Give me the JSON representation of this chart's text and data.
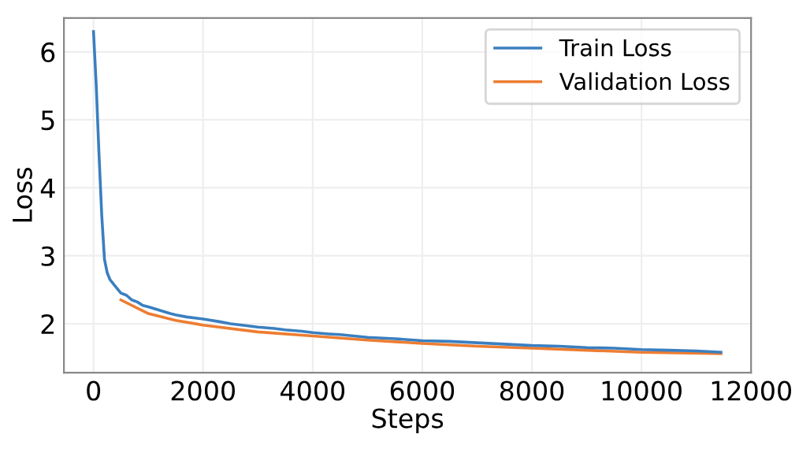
{
  "chart_data": {
    "type": "line",
    "xlabel": "Steps",
    "ylabel": "Loss",
    "xlim": [
      -540,
      12000
    ],
    "ylim": [
      1.28,
      6.5
    ],
    "xticks": [
      0,
      2000,
      4000,
      6000,
      8000,
      10000,
      12000
    ],
    "yticks": [
      2,
      3,
      4,
      5,
      6
    ],
    "grid": true,
    "legend": "top right",
    "series": [
      {
        "name": "Train Loss",
        "color": "#3a7fc0",
        "x": [
          0,
          50,
          100,
          150,
          200,
          250,
          300,
          400,
          500,
          600,
          700,
          800,
          900,
          1000,
          1200,
          1400,
          1500,
          1700,
          2000,
          2300,
          2500,
          2800,
          3000,
          3300,
          3500,
          3800,
          4000,
          4300,
          4500,
          5000,
          5500,
          6000,
          6500,
          7000,
          7500,
          8000,
          8500,
          9000,
          9500,
          10000,
          10500,
          11000,
          11450
        ],
        "values": [
          6.3,
          5.5,
          4.5,
          3.6,
          2.95,
          2.75,
          2.65,
          2.55,
          2.45,
          2.42,
          2.35,
          2.32,
          2.27,
          2.25,
          2.2,
          2.15,
          2.13,
          2.1,
          2.07,
          2.03,
          2.0,
          1.97,
          1.95,
          1.93,
          1.91,
          1.89,
          1.87,
          1.85,
          1.84,
          1.8,
          1.78,
          1.75,
          1.74,
          1.72,
          1.7,
          1.68,
          1.67,
          1.65,
          1.64,
          1.62,
          1.61,
          1.6,
          1.58
        ]
      },
      {
        "name": "Validation Loss",
        "color": "#ed7d31",
        "x": [
          500,
          1000,
          1500,
          2000,
          3000,
          4000,
          5000,
          6000,
          7000,
          8000,
          9000,
          10000,
          11450
        ],
        "values": [
          2.35,
          2.15,
          2.05,
          1.98,
          1.88,
          1.82,
          1.76,
          1.71,
          1.67,
          1.64,
          1.61,
          1.58,
          1.56
        ]
      }
    ]
  }
}
